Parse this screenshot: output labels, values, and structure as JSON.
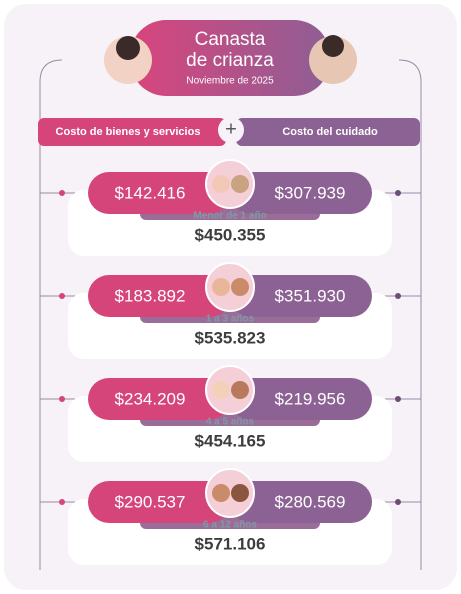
{
  "header": {
    "title_lines": [
      "Canasta",
      "de crianza"
    ],
    "subtitle": "Noviembre de 2025"
  },
  "columns": {
    "left": "Costo de bienes y servicios",
    "operator": "+",
    "right": "Costo del cuidado"
  },
  "rows": [
    {
      "goods": "$142.416",
      "care": "$307.939",
      "age": "Menor de 1 año",
      "total": "$450.355"
    },
    {
      "goods": "$183.892",
      "care": "$351.930",
      "age": "1 a 3 años",
      "total": "$535.823"
    },
    {
      "goods": "$234.209",
      "care": "$219.956",
      "age": "4 a 5 años",
      "total": "$454.165"
    },
    {
      "goods": "$290.537",
      "care": "$280.569",
      "age": "6 a 12 años",
      "total": "$571.106"
    }
  ]
}
